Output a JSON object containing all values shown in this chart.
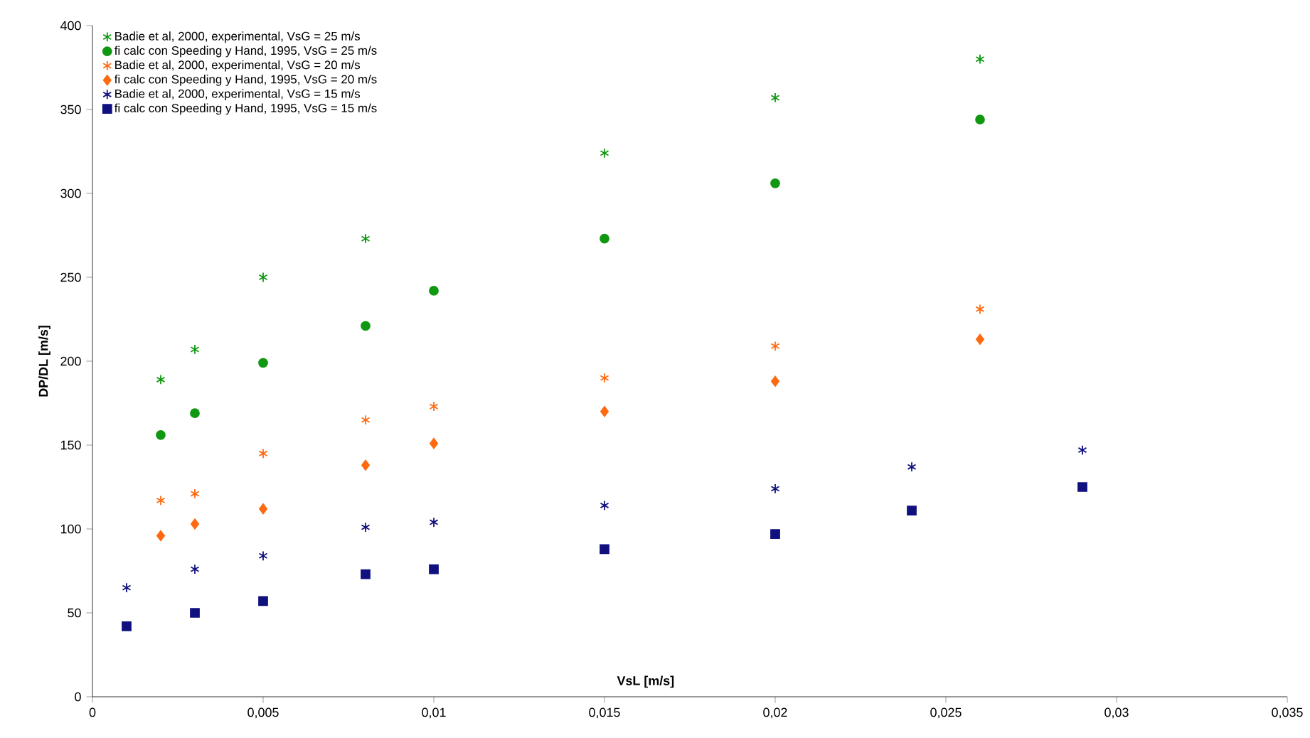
{
  "chart_data": {
    "type": "scatter",
    "xlabel": "VsL [m/s]",
    "ylabel": "DP/DL [m/s]",
    "xlim": [
      0,
      0.035
    ],
    "ylim": [
      0,
      400
    ],
    "xticks": [
      0,
      {
        "value": 0.005,
        "label": "0,005"
      },
      {
        "value": 0.01,
        "label": "0,01"
      },
      {
        "value": 0.015,
        "label": "0,015"
      },
      {
        "value": 0.02,
        "label": "0,02"
      },
      {
        "value": 0.025,
        "label": "0,025"
      },
      {
        "value": 0.03,
        "label": "0,03"
      },
      {
        "value": 0.035,
        "label": "0,035"
      }
    ],
    "yticks": [
      0,
      50,
      100,
      150,
      200,
      250,
      300,
      350,
      400
    ],
    "grid": false,
    "legend": "top left",
    "series": [
      {
        "name": "Badie et al, 2000, experimental, VsG = 25 m/s",
        "color": "#109810",
        "marker": "cross",
        "x": [
          0.002,
          0.003,
          0.005,
          0.008,
          0.015,
          0.02,
          0.026
        ],
        "values": [
          189,
          207,
          250,
          273,
          324,
          357,
          380
        ]
      },
      {
        "name": "fi calc con Speeding y Hand, 1995, VsG = 25 m/s",
        "color": "#109810",
        "marker": "circle",
        "x": [
          0.002,
          0.003,
          0.005,
          0.008,
          0.01,
          0.015,
          0.02,
          0.026
        ],
        "values": [
          156,
          169,
          199,
          221,
          242,
          273,
          306,
          344
        ]
      },
      {
        "name": "Badie et al, 2000, experimental, VsG = 20 m/s",
        "color": "#ff6a10",
        "marker": "cross",
        "x": [
          0.002,
          0.003,
          0.005,
          0.008,
          0.01,
          0.015,
          0.02,
          0.026
        ],
        "values": [
          117,
          121,
          145,
          165,
          173,
          190,
          209,
          231
        ]
      },
      {
        "name": "fi calc con Speeding y Hand, 1995, VsG = 20 m/s",
        "color": "#ff6a10",
        "marker": "diamond",
        "x": [
          0.002,
          0.003,
          0.005,
          0.008,
          0.01,
          0.015,
          0.02,
          0.026
        ],
        "values": [
          96,
          103,
          112,
          138,
          151,
          170,
          188,
          213
        ]
      },
      {
        "name": "Badie et al, 2000, experimental, VsG = 15 m/s",
        "color": "#10107f",
        "marker": "cross",
        "x": [
          0.001,
          0.003,
          0.005,
          0.008,
          0.01,
          0.015,
          0.02,
          0.024,
          0.029
        ],
        "values": [
          65,
          76,
          84,
          101,
          104,
          114,
          124,
          137,
          147
        ]
      },
      {
        "name": "fi calc con Speeding y Hand, 1995, VsG = 15 m/s",
        "color": "#10107f",
        "marker": "square",
        "x": [
          0.001,
          0.003,
          0.005,
          0.008,
          0.01,
          0.015,
          0.02,
          0.024,
          0.029
        ],
        "values": [
          42,
          50,
          57,
          73,
          76,
          88,
          97,
          111,
          125
        ]
      }
    ]
  }
}
